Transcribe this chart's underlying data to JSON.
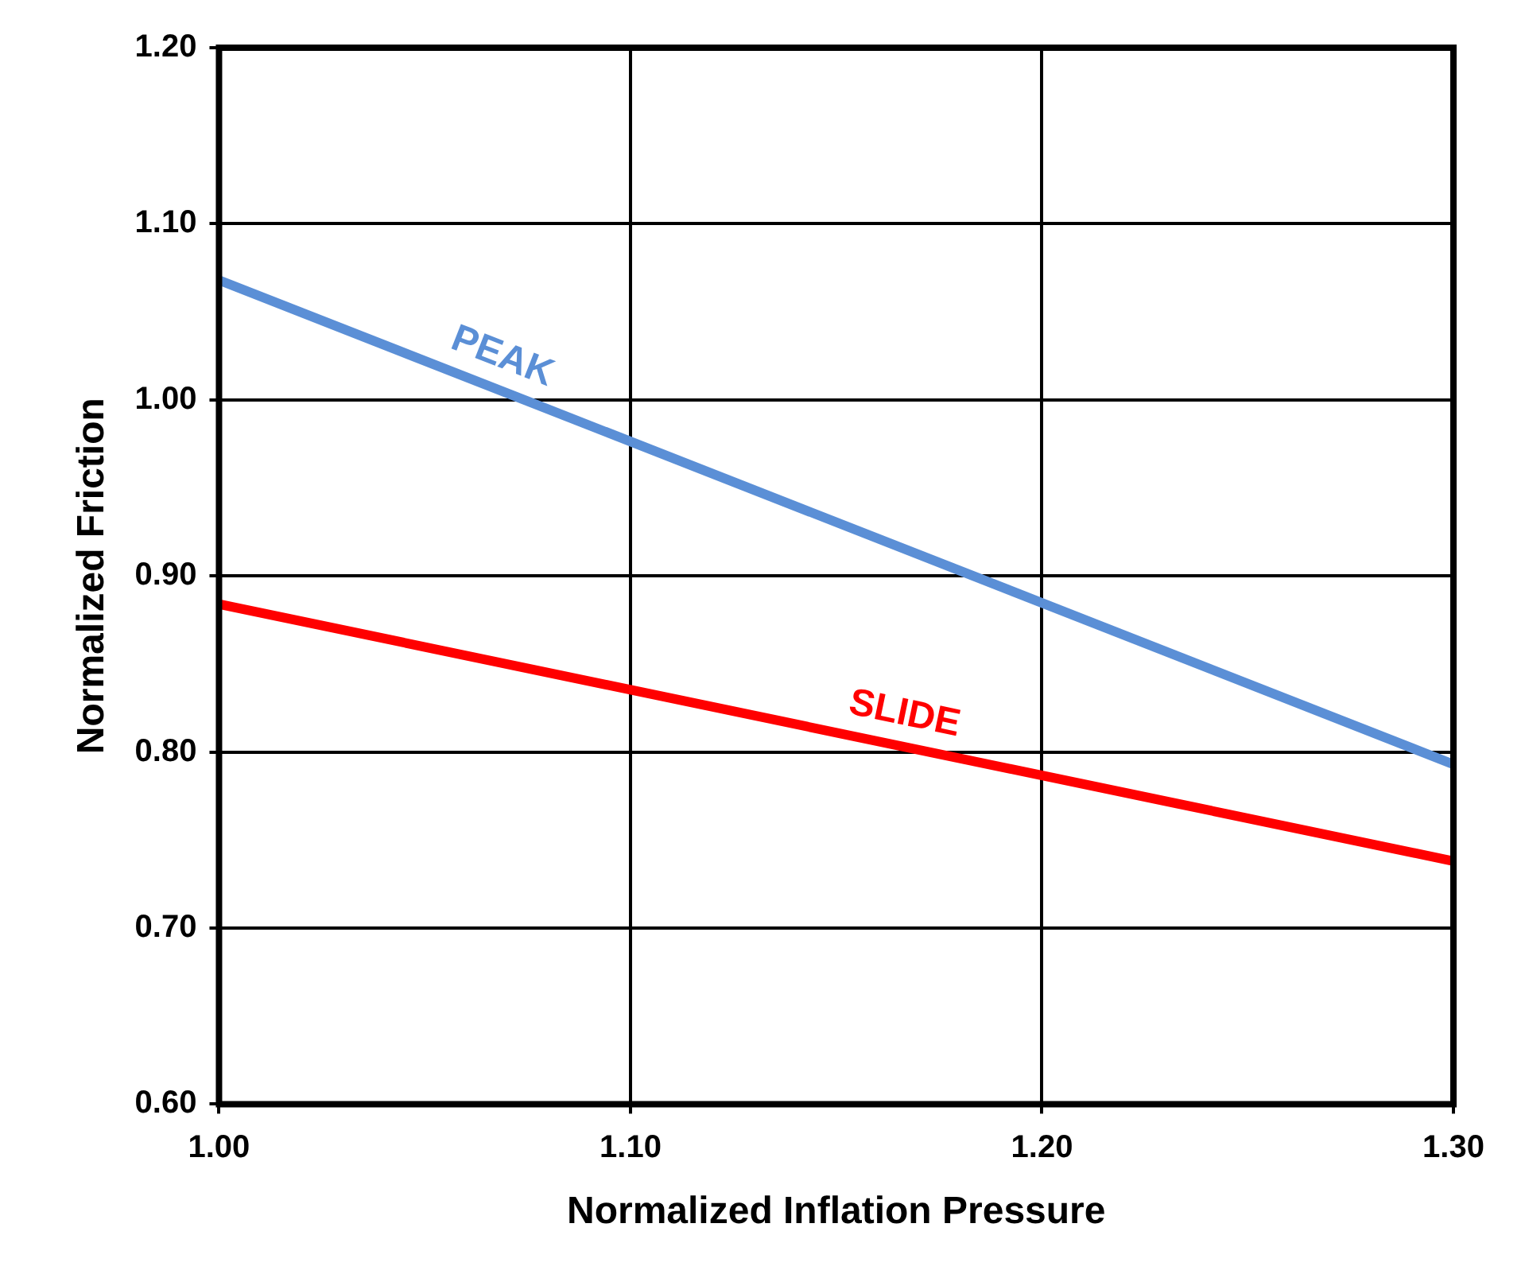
{
  "chart_data": {
    "type": "line",
    "xlabel": "Normalized Inflation Pressure",
    "ylabel": "Normalized Friction",
    "x": [
      1.0,
      1.3
    ],
    "series": [
      {
        "name": "PEAK",
        "color": "#5b8fd6",
        "values": [
          1.068,
          0.793
        ]
      },
      {
        "name": "SLIDE",
        "color": "#ff0000",
        "values": [
          0.884,
          0.738
        ]
      }
    ],
    "xlim": [
      1.0,
      1.3
    ],
    "xticks": [
      {
        "value": 1.0,
        "label": "1.00"
      },
      {
        "value": 1.1,
        "label": "1.10"
      },
      {
        "value": 1.2,
        "label": "1.20"
      },
      {
        "value": 1.3,
        "label": "1.30"
      }
    ],
    "ylim": [
      0.6,
      1.2
    ],
    "yticks": [
      {
        "value": 0.6,
        "label": "0.60"
      },
      {
        "value": 0.7,
        "label": "0.70"
      },
      {
        "value": 0.8,
        "label": "0.80"
      },
      {
        "value": 0.9,
        "label": "0.90"
      },
      {
        "value": 1.0,
        "label": "1.00"
      },
      {
        "value": 1.1,
        "label": "1.10"
      },
      {
        "value": 1.2,
        "label": "1.20"
      }
    ],
    "grid": true,
    "legend": false,
    "marker": "none",
    "line_style": "solid"
  }
}
